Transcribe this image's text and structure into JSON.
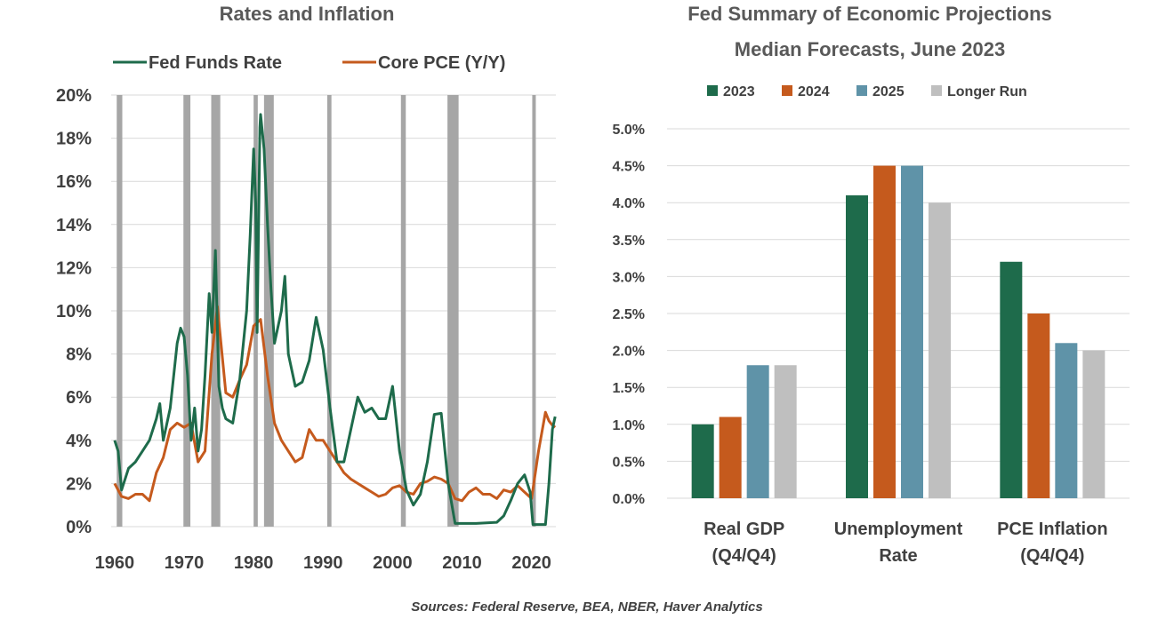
{
  "source_note": "Sources: Federal Reserve, BEA, NBER, Haver Analytics",
  "colors": {
    "green": "#1e6b4b",
    "orange": "#c55a1d",
    "blue": "#5f93a8",
    "gray": "#bfbfbf",
    "recession": "#a6a6a6"
  },
  "chart_data": [
    {
      "type": "line",
      "title": "Rates and Inflation",
      "xlim": [
        1959.5,
        2023.5
      ],
      "ylim": [
        0,
        20
      ],
      "x_ticks": [
        "1960",
        "1970",
        "1980",
        "1990",
        "2000",
        "2010",
        "2020"
      ],
      "y_ticks": [
        "0%",
        "2%",
        "4%",
        "6%",
        "8%",
        "10%",
        "12%",
        "14%",
        "16%",
        "18%",
        "20%"
      ],
      "grid": true,
      "recessions": [
        [
          1960.3,
          1961.1
        ],
        [
          1969.9,
          1970.9
        ],
        [
          1973.9,
          1975.2
        ],
        [
          1980.0,
          1980.6
        ],
        [
          1981.5,
          1982.9
        ],
        [
          1990.6,
          1991.2
        ],
        [
          2001.2,
          2001.9
        ],
        [
          2007.9,
          2009.5
        ],
        [
          2020.1,
          2020.4
        ]
      ],
      "series": [
        {
          "name": "Fed Funds Rate",
          "color": "#1e6b4b",
          "points": [
            [
              1960,
              4.0
            ],
            [
              1960.5,
              3.5
            ],
            [
              1961,
              1.7
            ],
            [
              1962,
              2.7
            ],
            [
              1963,
              3.0
            ],
            [
              1964,
              3.5
            ],
            [
              1965,
              4.0
            ],
            [
              1966,
              5.0
            ],
            [
              1966.5,
              5.7
            ],
            [
              1967,
              4.0
            ],
            [
              1968,
              5.5
            ],
            [
              1969,
              8.5
            ],
            [
              1969.5,
              9.2
            ],
            [
              1970,
              8.8
            ],
            [
              1970.5,
              7.0
            ],
            [
              1971,
              4.0
            ],
            [
              1971.5,
              5.5
            ],
            [
              1972,
              3.5
            ],
            [
              1972.5,
              4.5
            ],
            [
              1973,
              7.0
            ],
            [
              1973.6,
              10.8
            ],
            [
              1974,
              9.0
            ],
            [
              1974.5,
              12.8
            ],
            [
              1975,
              6.5
            ],
            [
              1975.5,
              5.5
            ],
            [
              1976,
              5.0
            ],
            [
              1977,
              4.8
            ],
            [
              1977.5,
              5.8
            ],
            [
              1978,
              6.8
            ],
            [
              1979,
              10.0
            ],
            [
              1979.5,
              13.5
            ],
            [
              1980,
              17.5
            ],
            [
              1980.3,
              15.0
            ],
            [
              1980.5,
              9.0
            ],
            [
              1980.9,
              18.5
            ],
            [
              1981,
              19.1
            ],
            [
              1981.5,
              17.5
            ],
            [
              1982,
              14.0
            ],
            [
              1982.5,
              11.0
            ],
            [
              1983,
              8.5
            ],
            [
              1984,
              10.0
            ],
            [
              1984.5,
              11.6
            ],
            [
              1985,
              8.0
            ],
            [
              1986,
              6.5
            ],
            [
              1987,
              6.7
            ],
            [
              1988,
              7.7
            ],
            [
              1989,
              9.7
            ],
            [
              1990,
              8.2
            ],
            [
              1991,
              5.5
            ],
            [
              1992,
              3.0
            ],
            [
              1993,
              3.0
            ],
            [
              1994,
              4.5
            ],
            [
              1995,
              6.0
            ],
            [
              1996,
              5.3
            ],
            [
              1997,
              5.5
            ],
            [
              1998,
              5.0
            ],
            [
              1999,
              5.0
            ],
            [
              2000,
              6.5
            ],
            [
              2001,
              3.5
            ],
            [
              2002,
              1.7
            ],
            [
              2003,
              1.0
            ],
            [
              2004,
              1.5
            ],
            [
              2005,
              3.0
            ],
            [
              2006,
              5.2
            ],
            [
              2007,
              5.25
            ],
            [
              2008,
              2.0
            ],
            [
              2009,
              0.15
            ],
            [
              2012,
              0.15
            ],
            [
              2015,
              0.2
            ],
            [
              2016,
              0.5
            ],
            [
              2017,
              1.2
            ],
            [
              2018,
              2.0
            ],
            [
              2019,
              2.4
            ],
            [
              2019.8,
              1.6
            ],
            [
              2020.2,
              0.1
            ],
            [
              2022,
              0.1
            ],
            [
              2022.5,
              2.0
            ],
            [
              2023,
              4.5
            ],
            [
              2023.4,
              5.1
            ]
          ]
        },
        {
          "name": "Core PCE (Y/Y)",
          "color": "#c55a1d",
          "points": [
            [
              1960,
              2.0
            ],
            [
              1961,
              1.4
            ],
            [
              1962,
              1.3
            ],
            [
              1963,
              1.5
            ],
            [
              1964,
              1.5
            ],
            [
              1965,
              1.2
            ],
            [
              1966,
              2.5
            ],
            [
              1967,
              3.2
            ],
            [
              1968,
              4.5
            ],
            [
              1969,
              4.8
            ],
            [
              1970,
              4.6
            ],
            [
              1971,
              4.8
            ],
            [
              1972,
              3.0
            ],
            [
              1973,
              3.5
            ],
            [
              1974,
              8.0
            ],
            [
              1974.8,
              10.2
            ],
            [
              1975,
              9.5
            ],
            [
              1976,
              6.2
            ],
            [
              1977,
              6.0
            ],
            [
              1978,
              6.8
            ],
            [
              1979,
              7.5
            ],
            [
              1980,
              9.3
            ],
            [
              1981,
              9.6
            ],
            [
              1982,
              7.0
            ],
            [
              1983,
              4.8
            ],
            [
              1984,
              4.0
            ],
            [
              1985,
              3.5
            ],
            [
              1986,
              3.0
            ],
            [
              1987,
              3.2
            ],
            [
              1988,
              4.5
            ],
            [
              1989,
              4.0
            ],
            [
              1990,
              4.0
            ],
            [
              1991,
              3.5
            ],
            [
              1992,
              3.0
            ],
            [
              1993,
              2.5
            ],
            [
              1994,
              2.2
            ],
            [
              1995,
              2.0
            ],
            [
              1996,
              1.8
            ],
            [
              1997,
              1.6
            ],
            [
              1998,
              1.4
            ],
            [
              1999,
              1.5
            ],
            [
              2000,
              1.8
            ],
            [
              2001,
              1.9
            ],
            [
              2002,
              1.6
            ],
            [
              2003,
              1.5
            ],
            [
              2004,
              2.0
            ],
            [
              2005,
              2.1
            ],
            [
              2006,
              2.3
            ],
            [
              2007,
              2.2
            ],
            [
              2008,
              2.0
            ],
            [
              2009,
              1.3
            ],
            [
              2010,
              1.2
            ],
            [
              2011,
              1.6
            ],
            [
              2012,
              1.8
            ],
            [
              2013,
              1.5
            ],
            [
              2014,
              1.5
            ],
            [
              2015,
              1.3
            ],
            [
              2016,
              1.7
            ],
            [
              2017,
              1.6
            ],
            [
              2018,
              1.9
            ],
            [
              2019,
              1.6
            ],
            [
              2020,
              1.3
            ],
            [
              2021,
              3.5
            ],
            [
              2022,
              5.3
            ],
            [
              2022.5,
              4.9
            ],
            [
              2023,
              4.7
            ],
            [
              2023.4,
              4.6
            ]
          ]
        }
      ]
    },
    {
      "type": "bar",
      "title": "Fed Summary of Economic Projections",
      "subtitle": "Median Forecasts, June 2023",
      "categories": [
        "Real GDP (Q4/Q4)",
        "Unemployment Rate",
        "PCE Inflation (Q4/Q4)"
      ],
      "category_lines": [
        [
          "Real GDP",
          "(Q4/Q4)"
        ],
        [
          "Unemployment",
          "Rate"
        ],
        [
          "PCE Inflation",
          "(Q4/Q4)"
        ]
      ],
      "ylim": [
        0,
        5
      ],
      "y_ticks": [
        "0.0%",
        "0.5%",
        "1.0%",
        "1.5%",
        "2.0%",
        "2.5%",
        "3.0%",
        "3.5%",
        "4.0%",
        "4.5%",
        "5.0%"
      ],
      "grid": true,
      "legend_position": "top",
      "series": [
        {
          "name": "2023",
          "color": "#1e6b4b",
          "values": [
            1.0,
            4.1,
            3.2
          ]
        },
        {
          "name": "2024",
          "color": "#c55a1d",
          "values": [
            1.1,
            4.5,
            2.5
          ]
        },
        {
          "name": "2025",
          "color": "#5f93a8",
          "values": [
            1.8,
            4.5,
            2.1
          ]
        },
        {
          "name": "Longer Run",
          "color": "#bfbfbf",
          "values": [
            1.8,
            4.0,
            2.0
          ]
        }
      ]
    }
  ]
}
